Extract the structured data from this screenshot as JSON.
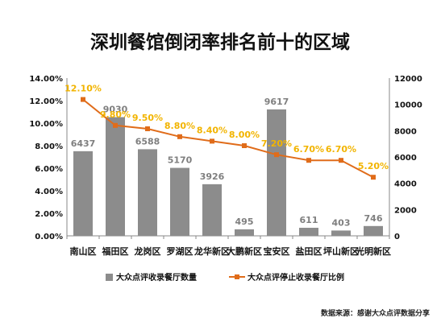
{
  "chart_data": {
    "type": "bar",
    "title": "深圳餐馆倒闭率排名前十的区域",
    "categories": [
      "南山区",
      "福田区",
      "龙岗区",
      "罗湖区",
      "龙华新区",
      "大鹏新区",
      "宝安区",
      "盐田区",
      "坪山新区",
      "光明新区"
    ],
    "series": [
      {
        "name": "大众点评收录餐厅数量",
        "type": "bar",
        "axis": "right",
        "values": [
          6437,
          9030,
          6588,
          5170,
          3926,
          495,
          9617,
          611,
          403,
          746
        ],
        "labels": [
          "6437",
          "9030",
          "6588",
          "5170",
          "3926",
          "495",
          "9617",
          "611",
          "403",
          "746"
        ]
      },
      {
        "name": "大众点评停止收录餐厅比例",
        "type": "line",
        "axis": "left",
        "values": [
          12.1,
          9.8,
          9.5,
          8.8,
          8.4,
          8.0,
          7.2,
          6.7,
          6.7,
          5.2
        ],
        "labels": [
          "12.10%",
          "9.80%",
          "9.50%",
          "8.80%",
          "8.40%",
          "8.00%",
          "7.20%",
          "6.70%",
          "6.70%",
          "5.20%"
        ]
      }
    ],
    "y_left": {
      "ylim": [
        0,
        14
      ],
      "ticks": [
        "0.00%",
        "2.00%",
        "4.00%",
        "6.00%",
        "8.00%",
        "10.00%",
        "12.00%",
        "14.00%"
      ]
    },
    "y_right": {
      "ylim": [
        0,
        12000
      ],
      "ticks": [
        "0",
        "2000",
        "4000",
        "6000",
        "8000",
        "10000",
        "12000"
      ]
    },
    "legend_position": "bottom",
    "grid": false,
    "colors": {
      "bar": "#8c8c8c",
      "line": "#e06c1a",
      "line_label": "#f2b400",
      "bar_label": "#7f7f7f"
    }
  },
  "source_note": "数据来源：感谢大众点评数据分享"
}
